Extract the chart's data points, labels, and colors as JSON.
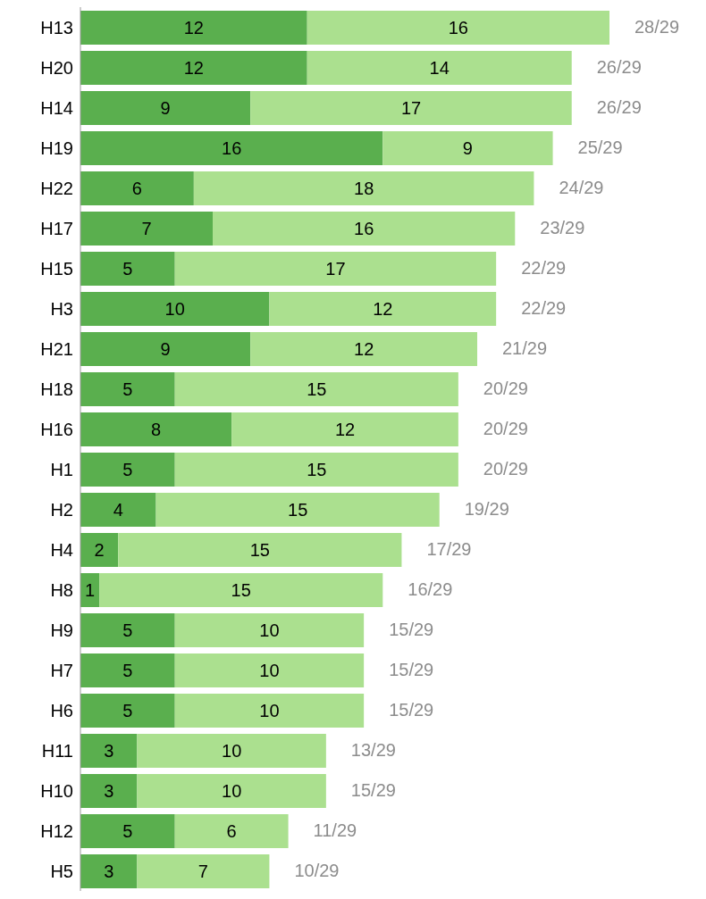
{
  "chart_data": {
    "type": "bar",
    "orientation": "horizontal",
    "stacked": true,
    "data_labels": true,
    "categories": [
      "H13",
      "H20",
      "H14",
      "H19",
      "H22",
      "H17",
      "H15",
      "H3",
      "H21",
      "H18",
      "H16",
      "H1",
      "H2",
      "H4",
      "H8",
      "H9",
      "H7",
      "H6",
      "H11",
      "H10",
      "H12",
      "H5"
    ],
    "series": [
      {
        "color": "#5aaf4e",
        "values": [
          12,
          12,
          9,
          16,
          6,
          7,
          5,
          10,
          9,
          5,
          8,
          5,
          4,
          2,
          1,
          5,
          5,
          5,
          3,
          3,
          5,
          3
        ]
      },
      {
        "color": "#abe08f",
        "values": [
          16,
          14,
          17,
          9,
          18,
          16,
          17,
          12,
          12,
          15,
          12,
          15,
          15,
          15,
          15,
          10,
          10,
          10,
          10,
          10,
          6,
          7
        ]
      }
    ],
    "totals": [
      "28/29",
      "26/29",
      "26/29",
      "25/29",
      "24/29",
      "23/29",
      "22/29",
      "22/29",
      "21/29",
      "20/29",
      "20/29",
      "20/29",
      "19/29",
      "17/29",
      "16/29",
      "15/29",
      "15/29",
      "15/29",
      "13/29",
      "15/29",
      "11/29",
      "10/29"
    ]
  }
}
